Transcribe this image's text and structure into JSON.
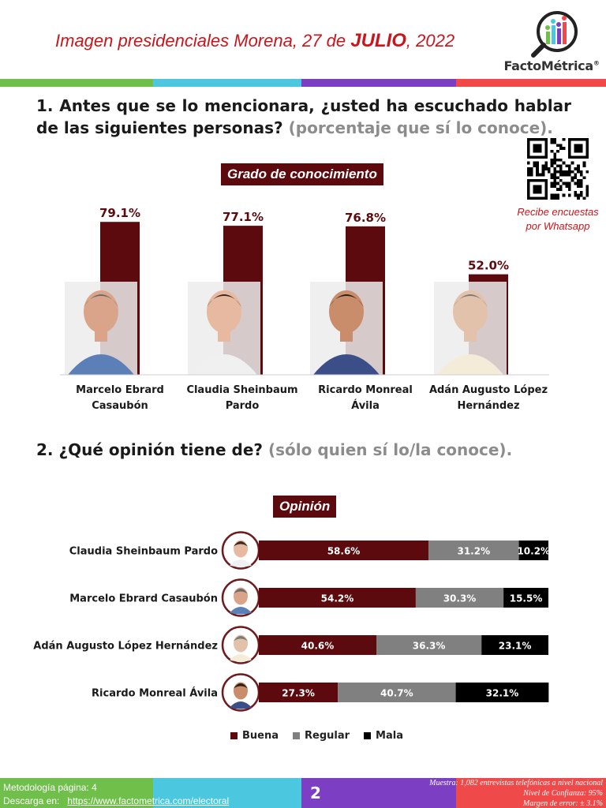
{
  "header": {
    "title_prefix": "Imagen presidenciales Morena, 27 de ",
    "title_month": "JULIO",
    "title_suffix": ", 2022",
    "brand": "FactoMétrica",
    "brand_mark": "®"
  },
  "colors": {
    "bar": "#5c0a0e",
    "buena": "#5c0a0e",
    "regular": "#808080",
    "mala": "#000000",
    "title_red": "#c8161d",
    "stripe": [
      "#6fbf4a",
      "#4cc7e0",
      "#7c3fc4",
      "#ef4a49"
    ]
  },
  "question1": {
    "text": "1. Antes que se lo mencionara, ¿usted ha escuchado hablar de las siguientes personas? ",
    "note": "(porcentaje que sí lo conoce)."
  },
  "qr": {
    "caption_line1": "Recibe encuestas",
    "caption_line2": "por Whatsapp"
  },
  "question2": {
    "text": "2. ¿Qué opinión tiene de? ",
    "note": "(sólo quien sí lo/la conoce)."
  },
  "chart_data": [
    {
      "type": "bar",
      "title": "Grado de conocimiento",
      "categories": [
        "Marcelo Ebrard Casaubón",
        "Claudia Sheinbaum Pardo",
        "Ricardo Monreal Ávila",
        "Adán Augusto López Hernández"
      ],
      "name_lines": [
        [
          "Marcelo Ebrard",
          "Casaubón"
        ],
        [
          "Claudia Sheinbaum",
          "Pardo"
        ],
        [
          "Ricardo Monreal",
          "Ávila"
        ],
        [
          "Adán Augusto López",
          "Hernández"
        ]
      ],
      "values": [
        79.1,
        77.1,
        76.8,
        52.0
      ],
      "labels": [
        "79.1%",
        "77.1%",
        "76.8%",
        "52.0%"
      ],
      "ylim": [
        0,
        100
      ]
    },
    {
      "type": "bar",
      "orientation": "horizontal-stacked",
      "title": "Opinión",
      "categories": [
        "Claudia Sheinbaum Pardo",
        "Marcelo Ebrard Casaubón",
        "Adán Augusto López Hernández",
        "Ricardo Monreal Ávila"
      ],
      "series": [
        {
          "name": "Buena",
          "values": [
            58.6,
            54.2,
            40.6,
            27.3
          ],
          "labels": [
            "58.6%",
            "54.2%",
            "40.6%",
            "27.3%"
          ]
        },
        {
          "name": "Regular",
          "values": [
            31.2,
            30.3,
            36.3,
            40.7
          ],
          "labels": [
            "31.2%",
            "30.3%",
            "36.3%",
            "40.7%"
          ]
        },
        {
          "name": "Mala",
          "values": [
            10.2,
            15.5,
            23.1,
            32.1
          ],
          "labels": [
            "10.2%",
            "15.5%",
            "23.1%",
            "32.1%"
          ]
        }
      ],
      "xlim": [
        0,
        100
      ],
      "legend": "bottom"
    }
  ],
  "footer": {
    "methodology": "Metodología página: 4",
    "download_label": "Descarga en:",
    "download_url": "https://www.factometrica.com/electoral",
    "page_number": "2",
    "sample": "Muestra:  1,082 entrevistas telefónicas a nivel nacional",
    "confidence": "Nivel de Confianza: 95%",
    "error": "Margen de error: ± 3.1%"
  }
}
